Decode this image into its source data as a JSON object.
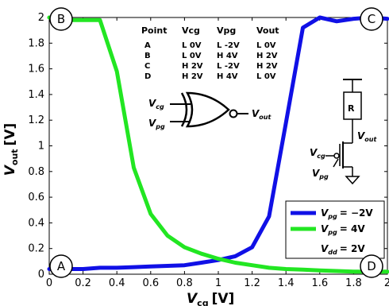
{
  "chart_data": {
    "type": "line",
    "xlim": [
      0,
      2
    ],
    "ylim": [
      0,
      2
    ],
    "x_ticks": [
      "0",
      "0.2",
      "0.4",
      "0.6",
      "0.8",
      "1",
      "1.2",
      "1.4",
      "1.6",
      "1.8",
      "2"
    ],
    "y_ticks": [
      "0",
      "0.2",
      "0.4",
      "0.6",
      "0.8",
      "1",
      "1.2",
      "1.4",
      "1.6",
      "1.8",
      "2"
    ],
    "xlabel": {
      "main": "V",
      "sub": "cg",
      "unit": "[V]"
    },
    "ylabel": {
      "main": "V",
      "sub": "out",
      "unit": "[V]"
    },
    "grid": false,
    "legend_position": "bottom-right",
    "series": [
      {
        "legend_main": "V",
        "legend_sub": "pg",
        "legend_value": "= −2V",
        "color": "#1010e6",
        "x": [
          0,
          0.1,
          0.2,
          0.3,
          0.4,
          0.5,
          0.6,
          0.7,
          0.8,
          0.9,
          1.0,
          1.1,
          1.2,
          1.3,
          1.4,
          1.5,
          1.6,
          1.7,
          1.8,
          1.9,
          2.0
        ],
        "y": [
          0.04,
          0.04,
          0.04,
          0.05,
          0.05,
          0.055,
          0.06,
          0.065,
          0.07,
          0.09,
          0.11,
          0.14,
          0.21,
          0.45,
          1.18,
          1.92,
          2.0,
          1.97,
          1.99,
          2.0,
          1.99
        ]
      },
      {
        "legend_main": "V",
        "legend_sub": "pg",
        "legend_value": "= 4V",
        "color": "#22e622",
        "x": [
          0,
          0.1,
          0.2,
          0.3,
          0.4,
          0.5,
          0.6,
          0.7,
          0.8,
          0.9,
          1.0,
          1.1,
          1.2,
          1.3,
          1.4,
          1.5,
          1.6,
          1.7,
          1.8,
          1.9,
          2.0
        ],
        "y": [
          2.0,
          1.98,
          1.98,
          1.98,
          1.58,
          0.83,
          0.47,
          0.3,
          0.21,
          0.16,
          0.12,
          0.09,
          0.07,
          0.05,
          0.04,
          0.035,
          0.03,
          0.025,
          0.02,
          0.02,
          0.02
        ]
      }
    ],
    "legend_extra": {
      "main": "V",
      "sub": "dd",
      "value": "= 2V"
    },
    "points": [
      {
        "label": "A",
        "x": 0,
        "y": 0.04
      },
      {
        "label": "B",
        "x": 0,
        "y": 2.0
      },
      {
        "label": "C",
        "x": 2.0,
        "y": 1.99
      },
      {
        "label": "D",
        "x": 2.0,
        "y": 0.02
      }
    ],
    "truth_table": {
      "headers": [
        "Point",
        "Vcg",
        "Vpg",
        "Vout"
      ],
      "rows": [
        [
          "A",
          "L 0V",
          "L -2V",
          "L 0V"
        ],
        [
          "B",
          "L 0V",
          "H 4V",
          "H 2V"
        ],
        [
          "C",
          "H 2V",
          "L -2V",
          "H 2V"
        ],
        [
          "D",
          "H 2V",
          "H 4V",
          "L 0V"
        ]
      ]
    },
    "gate": {
      "in1_main": "V",
      "in1_sub": "cg",
      "in2_main": "V",
      "in2_sub": "pg",
      "out_main": "V",
      "out_sub": "out"
    },
    "circuit": {
      "resistor": "R",
      "out_main": "V",
      "out_sub": "out",
      "cg_main": "V",
      "cg_sub": "cg",
      "pg_main": "V",
      "pg_sub": "pg"
    }
  }
}
